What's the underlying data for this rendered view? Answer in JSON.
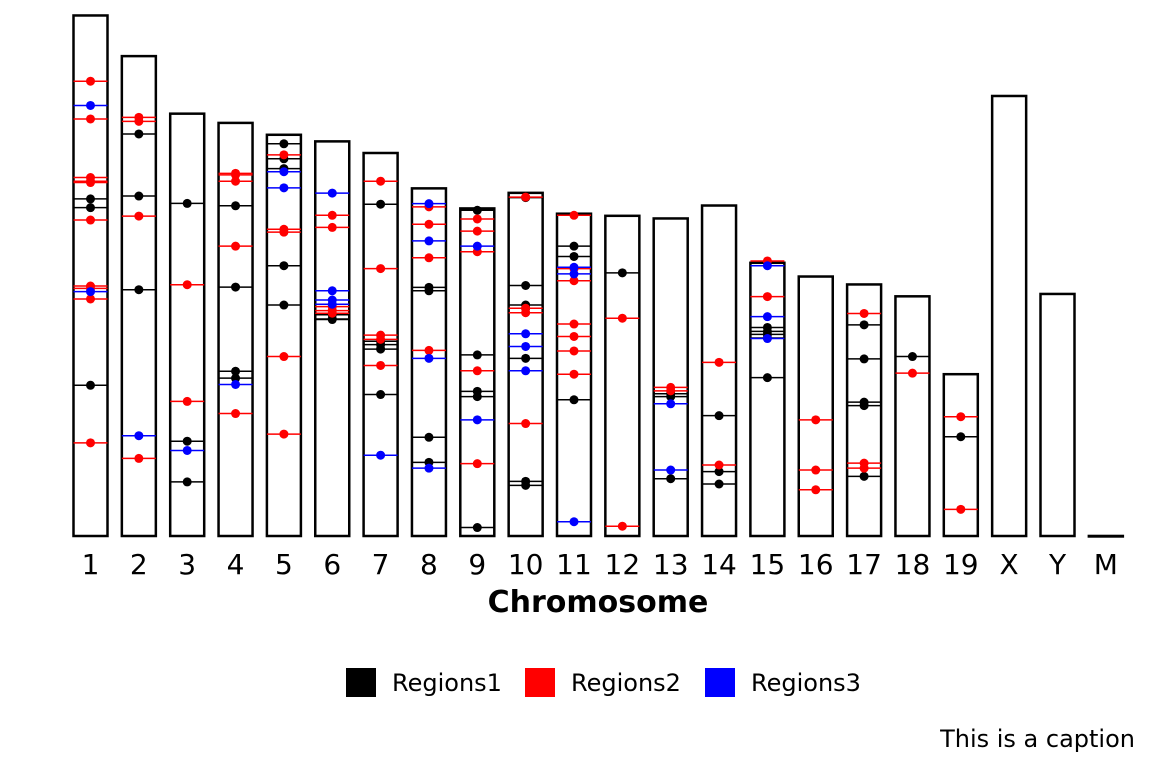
{
  "chart_data": {
    "type": "ideogram",
    "xlabel": "Chromosome",
    "caption": "This is a caption",
    "ylim": [
      0,
      197
    ],
    "chromosomes": [
      {
        "name": "1",
        "length": 197.2
      },
      {
        "name": "2",
        "length": 181.8
      },
      {
        "name": "3",
        "length": 160.0
      },
      {
        "name": "4",
        "length": 156.5
      },
      {
        "name": "5",
        "length": 152.0
      },
      {
        "name": "6",
        "length": 149.5
      },
      {
        "name": "7",
        "length": 145.1
      },
      {
        "name": "8",
        "length": 131.7
      },
      {
        "name": "9",
        "length": 124.1
      },
      {
        "name": "10",
        "length": 130.0
      },
      {
        "name": "11",
        "length": 122.1
      },
      {
        "name": "12",
        "length": 121.3
      },
      {
        "name": "13",
        "length": 120.3
      },
      {
        "name": "14",
        "length": 125.2
      },
      {
        "name": "15",
        "length": 103.5
      },
      {
        "name": "16",
        "length": 98.3
      },
      {
        "name": "17",
        "length": 95.3
      },
      {
        "name": "18",
        "length": 90.8
      },
      {
        "name": "19",
        "length": 61.3
      },
      {
        "name": "X",
        "length": 166.7
      },
      {
        "name": "Y",
        "length": 91.7
      },
      {
        "name": "M",
        "length": 0.016
      }
    ],
    "series": [
      {
        "name": "Regions1",
        "color": "#000000",
        "points": [
          {
            "chr": "1",
            "pos": [
              127.7,
              124.4,
              57.1
            ]
          },
          {
            "chr": "2",
            "pos": [
              152.3,
              128.8,
              93.3
            ]
          },
          {
            "chr": "3",
            "pos": [
              126.0,
              35.9,
              20.5
            ]
          },
          {
            "chr": "4",
            "pos": [
              125.1,
              94.3,
              62.4,
              59.8
            ]
          },
          {
            "chr": "5",
            "pos": [
              148.6,
              142.9,
              139.2,
              102.4,
              87.5
            ]
          },
          {
            "chr": "6",
            "pos": [
              83.8,
              82.2,
              82.0
            ]
          },
          {
            "chr": "7",
            "pos": [
              125.7,
              73.8,
              72.5,
              70.8,
              53.6
            ]
          },
          {
            "chr": "8",
            "pos": [
              94.2,
              92.9,
              37.4,
              27.9
            ]
          },
          {
            "chr": "9",
            "pos": [
              123.4,
              68.6,
              54.8,
              52.8,
              3.2
            ]
          },
          {
            "chr": "10",
            "pos": [
              128.2,
              94.9,
              87.5,
              86.3,
              67.3,
              20.7,
              19.2
            ]
          },
          {
            "chr": "11",
            "pos": [
              109.8,
              105.9,
              51.6
            ]
          },
          {
            "chr": "12",
            "pos": [
              99.7
            ]
          },
          {
            "chr": "13",
            "pos": [
              53.9,
              52.8,
              21.7
            ]
          },
          {
            "chr": "14",
            "pos": [
              45.6,
              24.4,
              19.7
            ]
          },
          {
            "chr": "15",
            "pos": [
              79.0,
              77.5,
              76.4,
              75.0,
              60.0
            ]
          },
          {
            "chr": "17",
            "pos": [
              80.0,
              67.1,
              50.7,
              49.4,
              22.6
            ]
          },
          {
            "chr": "18",
            "pos": [
              68.0
            ]
          },
          {
            "chr": "19",
            "pos": [
              37.6
            ]
          }
        ]
      },
      {
        "name": "Regions2",
        "color": "#ff0000",
        "points": [
          {
            "chr": "1",
            "pos": [
              172.3,
              158.0,
              135.8,
              134.4,
              133.9,
              119.7,
              94.7,
              93.8,
              89.8,
              35.3
            ]
          },
          {
            "chr": "2",
            "pos": [
              158.6,
              157.1,
              121.2,
              29.4
            ]
          },
          {
            "chr": "3",
            "pos": [
              95.2,
              51.0
            ]
          },
          {
            "chr": "4",
            "pos": [
              137.4,
              136.8,
              134.4,
              109.8,
              46.4
            ]
          },
          {
            "chr": "5",
            "pos": [
              144.4,
              116.2,
              115.1,
              68.0,
              38.6
            ]
          },
          {
            "chr": "6",
            "pos": [
              121.5,
              116.9,
              86.9,
              85.4,
              84.4
            ]
          },
          {
            "chr": "7",
            "pos": [
              134.4,
              101.3,
              76.1,
              74.5,
              64.6
            ]
          },
          {
            "chr": "8",
            "pos": [
              124.7,
              118.1,
              105.4,
              70.3
            ]
          },
          {
            "chr": "9",
            "pos": [
              120.1,
              115.5,
              107.7,
              62.6,
              27.4
            ]
          },
          {
            "chr": "10",
            "pos": [
              128.4,
              86.3,
              84.6,
              42.6
            ]
          },
          {
            "chr": "11",
            "pos": [
              121.5,
              101.3,
              96.7,
              80.3,
              75.6,
              70.1,
              61.3
            ]
          },
          {
            "chr": "12",
            "pos": [
              82.5,
              3.7
            ]
          },
          {
            "chr": "13",
            "pos": [
              56.3,
              55.0
            ]
          },
          {
            "chr": "14",
            "pos": [
              65.8,
              26.9
            ]
          },
          {
            "chr": "15",
            "pos": [
              104.2,
              90.7
            ]
          },
          {
            "chr": "16",
            "pos": [
              44.0,
              25.0,
              17.5
            ]
          },
          {
            "chr": "17",
            "pos": [
              84.3,
              27.6,
              25.7
            ]
          },
          {
            "chr": "18",
            "pos": [
              61.7
            ]
          },
          {
            "chr": "19",
            "pos": [
              45.2,
              10.1
            ]
          }
        ]
      },
      {
        "name": "Regions3",
        "color": "#0000ff",
        "points": [
          {
            "chr": "1",
            "pos": [
              163.1,
              92.6
            ]
          },
          {
            "chr": "2",
            "pos": [
              38.0
            ]
          },
          {
            "chr": "3",
            "pos": [
              32.4
            ]
          },
          {
            "chr": "4",
            "pos": [
              57.4
            ]
          },
          {
            "chr": "5",
            "pos": [
              138.0,
              131.9
            ]
          },
          {
            "chr": "6",
            "pos": [
              129.9,
              92.9,
              89.4,
              87.8
            ]
          },
          {
            "chr": "7",
            "pos": [
              30.6
            ]
          },
          {
            "chr": "8",
            "pos": [
              125.9,
              111.8,
              67.3,
              25.7
            ]
          },
          {
            "chr": "9",
            "pos": [
              109.8,
              44.0
            ]
          },
          {
            "chr": "10",
            "pos": [
              76.6,
              71.8,
              62.6
            ]
          },
          {
            "chr": "11",
            "pos": [
              101.8,
              99.3,
              5.4
            ]
          },
          {
            "chr": "13",
            "pos": [
              50.1,
              25.0
            ]
          },
          {
            "chr": "15",
            "pos": [
              102.4,
              83.1,
              74.8
            ]
          }
        ]
      }
    ]
  },
  "legend": {
    "items": [
      {
        "label": "Regions1",
        "color": "#000000"
      },
      {
        "label": "Regions2",
        "color": "#ff0000"
      },
      {
        "label": "Regions3",
        "color": "#0000ff"
      }
    ]
  }
}
